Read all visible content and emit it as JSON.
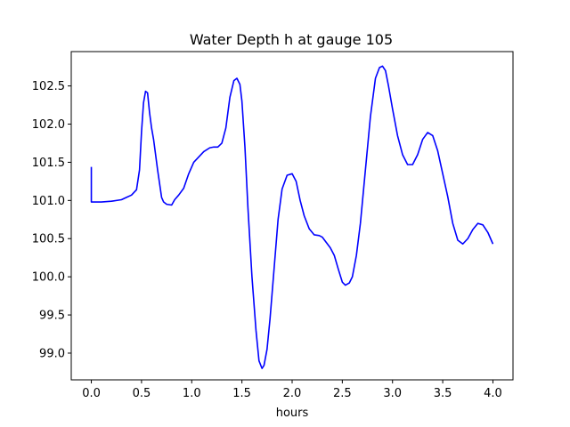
{
  "chart_data": {
    "type": "line",
    "title": "Water Depth h at gauge 105",
    "xlabel": "hours",
    "ylabel": "",
    "xlim": [
      -0.2,
      4.2
    ],
    "ylim": [
      98.65,
      102.95
    ],
    "xticks": [
      0.0,
      0.5,
      1.0,
      1.5,
      2.0,
      2.5,
      3.0,
      3.5,
      4.0
    ],
    "xtick_labels": [
      "0.0",
      "0.5",
      "1.0",
      "1.5",
      "2.0",
      "2.5",
      "3.0",
      "3.5",
      "4.0"
    ],
    "yticks": [
      99.0,
      99.5,
      100.0,
      100.5,
      101.0,
      101.5,
      102.0,
      102.5
    ],
    "ytick_labels": [
      "99.0",
      "99.5",
      "100.0",
      "100.5",
      "101.0",
      "101.5",
      "102.0",
      "102.5"
    ],
    "grid": false,
    "series": [
      {
        "color": "#0000ff",
        "x": [
          0.0,
          0.0,
          0.1,
          0.2,
          0.3,
          0.35,
          0.4,
          0.45,
          0.48,
          0.5,
          0.52,
          0.54,
          0.56,
          0.58,
          0.6,
          0.62,
          0.66,
          0.7,
          0.72,
          0.75,
          0.8,
          0.83,
          0.87,
          0.92,
          0.97,
          1.02,
          1.07,
          1.12,
          1.18,
          1.22,
          1.26,
          1.3,
          1.34,
          1.38,
          1.42,
          1.45,
          1.48,
          1.5,
          1.53,
          1.56,
          1.6,
          1.64,
          1.67,
          1.7,
          1.72,
          1.75,
          1.78,
          1.82,
          1.86,
          1.9,
          1.95,
          2.0,
          2.04,
          2.08,
          2.12,
          2.17,
          2.22,
          2.27,
          2.3,
          2.34,
          2.38,
          2.42,
          2.46,
          2.5,
          2.53,
          2.57,
          2.6,
          2.64,
          2.68,
          2.73,
          2.78,
          2.83,
          2.87,
          2.9,
          2.93,
          2.96,
          3.0,
          3.05,
          3.1,
          3.15,
          3.2,
          3.25,
          3.3,
          3.35,
          3.4,
          3.45,
          3.5,
          3.55,
          3.6,
          3.65,
          3.7,
          3.75,
          3.8,
          3.85,
          3.9,
          3.95,
          4.0
        ],
        "y": [
          101.44,
          100.98,
          100.98,
          100.99,
          101.01,
          101.04,
          101.07,
          101.14,
          101.4,
          101.9,
          102.28,
          102.43,
          102.41,
          102.15,
          101.95,
          101.8,
          101.4,
          101.04,
          100.98,
          100.95,
          100.94,
          101.01,
          101.07,
          101.16,
          101.35,
          101.5,
          101.57,
          101.64,
          101.69,
          101.7,
          101.7,
          101.75,
          101.95,
          102.35,
          102.57,
          102.6,
          102.52,
          102.3,
          101.7,
          100.9,
          100.0,
          99.3,
          98.9,
          98.8,
          98.84,
          99.05,
          99.45,
          100.1,
          100.75,
          101.15,
          101.33,
          101.35,
          101.25,
          101.0,
          100.8,
          100.63,
          100.55,
          100.54,
          100.52,
          100.45,
          100.38,
          100.28,
          100.1,
          99.93,
          99.89,
          99.92,
          100.0,
          100.28,
          100.7,
          101.4,
          102.1,
          102.6,
          102.74,
          102.76,
          102.7,
          102.5,
          102.2,
          101.85,
          101.6,
          101.47,
          101.47,
          101.6,
          101.8,
          101.89,
          101.85,
          101.65,
          101.35,
          101.05,
          100.7,
          100.48,
          100.43,
          100.5,
          100.62,
          100.7,
          100.68,
          100.58,
          100.43
        ]
      }
    ]
  }
}
